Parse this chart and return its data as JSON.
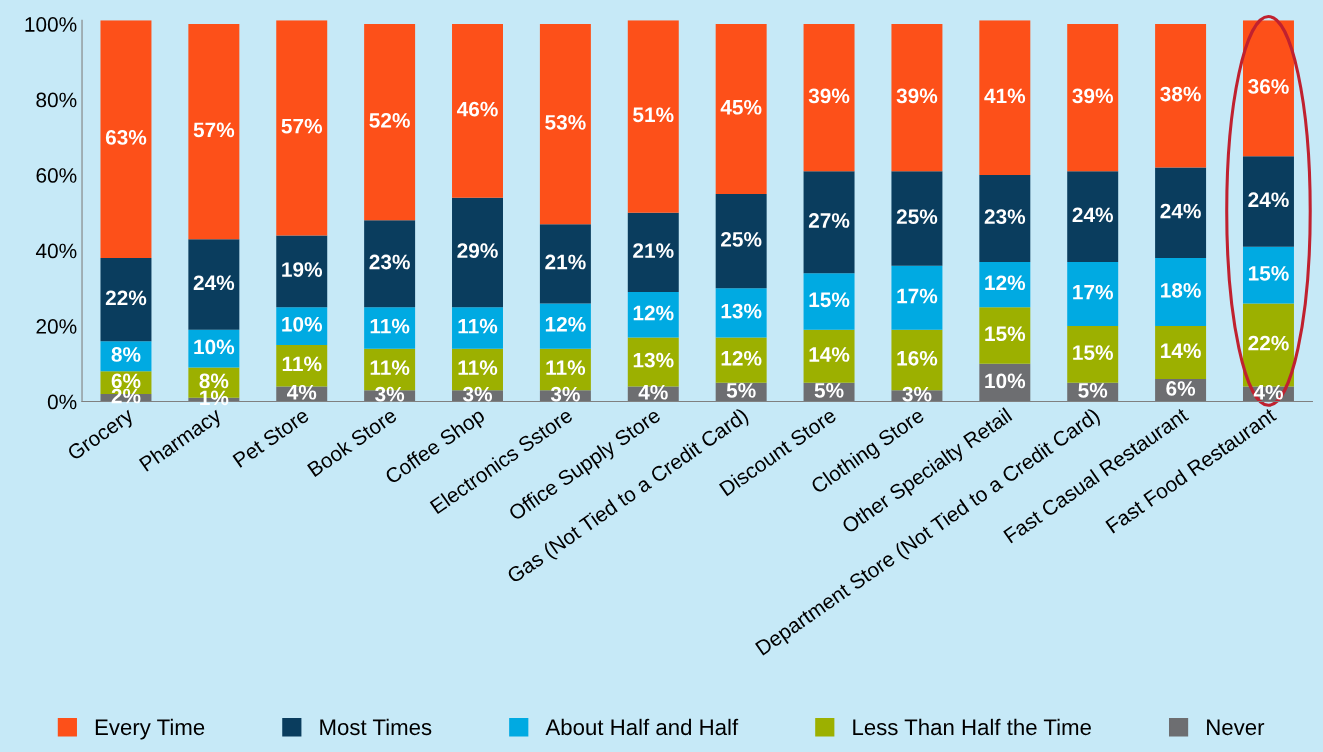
{
  "chart_data": {
    "type": "bar",
    "stacked": true,
    "categories": [
      "Grocery",
      "Pharmacy",
      "Pet Store",
      "Book Store",
      "Coffee Shop",
      "Electronics Sstore",
      "Office Supply Store",
      "Gas (Not Tied to a Credit Card)",
      "Discount Store",
      "Clothing Store",
      "Other Specialty Retail",
      "Department Store (Not Tied to a Credit Card)",
      "Fast Casual Restaurant",
      "Fast Food Restaurant"
    ],
    "series": [
      {
        "name": "Never",
        "color": "#6d6e71",
        "values": [
          2,
          1,
          4,
          3,
          3,
          3,
          4,
          5,
          5,
          3,
          10,
          5,
          6,
          4
        ],
        "value_labels": [
          "2%",
          "1%",
          "4%",
          "3%",
          "3%",
          "3%",
          "4%",
          "5%",
          "5%",
          "3%",
          "10%",
          "5%",
          "6%",
          "4%"
        ]
      },
      {
        "name": "Less Than Half the Time",
        "color": "#9cb000",
        "values": [
          6,
          8,
          11,
          11,
          11,
          11,
          13,
          12,
          14,
          16,
          15,
          15,
          14,
          22
        ],
        "value_labels": [
          "6%",
          "8%",
          "11%",
          "11%",
          "11%",
          "11%",
          "13%",
          "12%",
          "14%",
          "16%",
          "15%",
          "15%",
          "14%",
          "22%"
        ]
      },
      {
        "name": "About Half and Half",
        "color": "#00aae2",
        "values": [
          8,
          10,
          10,
          11,
          11,
          12,
          12,
          13,
          15,
          17,
          12,
          17,
          18,
          15
        ],
        "value_labels": [
          "8%",
          "10%",
          "10%",
          "11%",
          "11%",
          "12%",
          "12%",
          "13%",
          "15%",
          "17%",
          "12%",
          "17%",
          "18%",
          "15%"
        ]
      },
      {
        "name": "Most Times",
        "color": "#0a3d5e",
        "values": [
          22,
          24,
          19,
          23,
          29,
          21,
          21,
          25,
          27,
          25,
          23,
          24,
          24,
          24
        ],
        "value_labels": [
          "22%",
          "24%",
          "19%",
          "23%",
          "29%",
          "21%",
          "21%",
          "25%",
          "27%",
          "25%",
          "23%",
          "24%",
          "24%",
          "24%"
        ]
      },
      {
        "name": "Every Time",
        "color": "#fd5019",
        "values": [
          63,
          57,
          57,
          52,
          46,
          53,
          51,
          45,
          39,
          39,
          41,
          39,
          38,
          36
        ],
        "value_labels": [
          "63%",
          "57%",
          "57%",
          "52%",
          "46%",
          "53%",
          "51%",
          "45%",
          "39%",
          "39%",
          "41%",
          "39%",
          "38%",
          "36%"
        ]
      }
    ],
    "ylim": [
      0,
      101
    ],
    "yticks": [
      {
        "value": 0,
        "label": "0%"
      },
      {
        "value": 20,
        "label": "20%"
      },
      {
        "value": 40,
        "label": "40%"
      },
      {
        "value": 60,
        "label": "60%"
      },
      {
        "value": 80,
        "label": "80%"
      },
      {
        "value": 100,
        "label": "100%"
      }
    ],
    "grid": false,
    "legend": "bottom"
  }
}
